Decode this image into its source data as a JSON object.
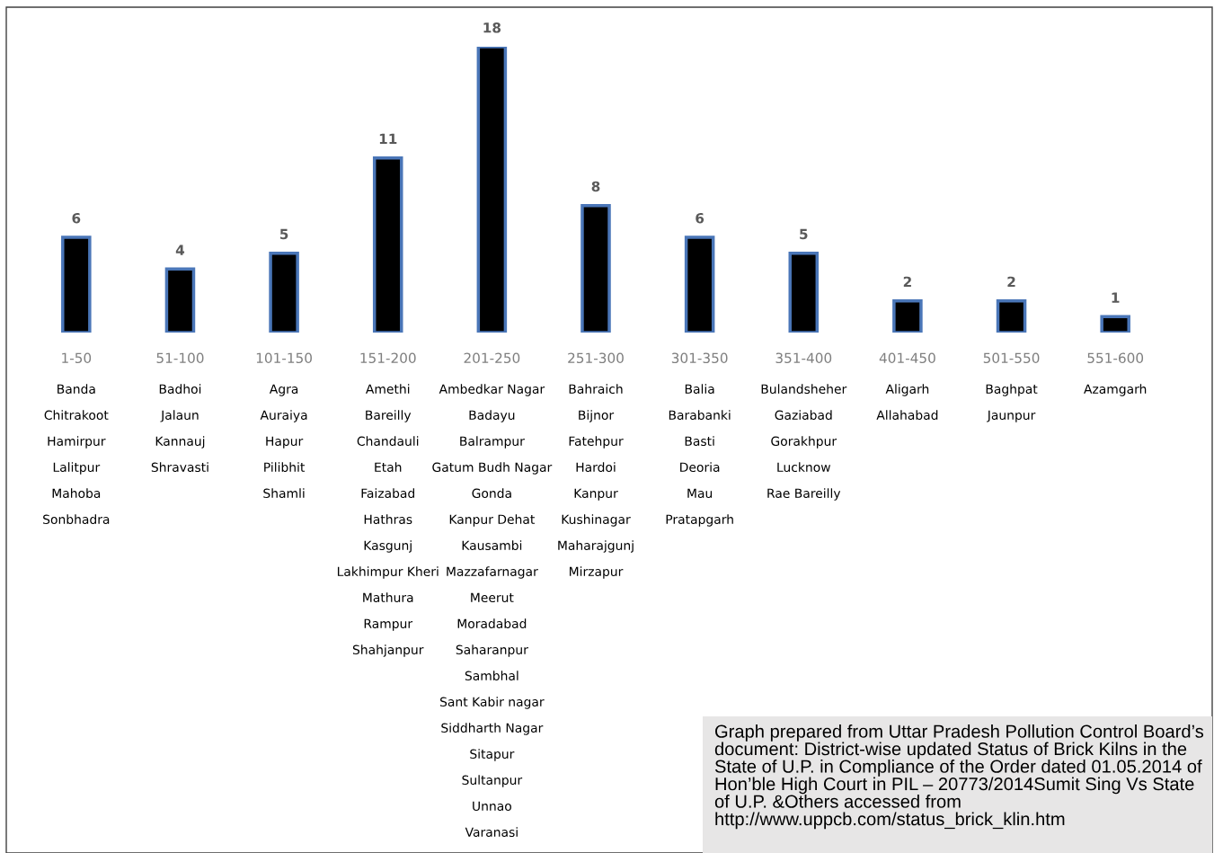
{
  "chart_data": {
    "type": "bar",
    "categories": [
      "1-50",
      "51-100",
      "101-150",
      "151-200",
      "201-250",
      "251-300",
      "301-350",
      "351-400",
      "401-450",
      "501-550",
      "551-600"
    ],
    "values": [
      6,
      4,
      5,
      11,
      18,
      8,
      6,
      5,
      2,
      2,
      1
    ],
    "color": "#000000",
    "data_labels": true,
    "grid": false,
    "legend": false,
    "annotations": [
      "Banda\nChitrakoot\nHamirpur\nLalitpur\nMahoba\nSonbhadra",
      "Badhoi\nJalaun\nKannauj\nShravasti",
      "Agra\nAuraiya\nHapur\nPilibhit\nShamli",
      "Amethi\nBareilly\nChandauli\nEtah\nFaizabad\nHathras\nKasgunj\nLakhimpur Kheri\nMathura\nRampur\nShahjanpur",
      "Ambedkar Nagar\nBadayu\nBalrampur\nGatum Budh Nagar\nGonda\nKanpur Dehat\nKausambi\nMazzafarnagar\nMeerut\nMoradabad\nSaharanpur\nSambhal\nSant Kabir nagar\nSiddharth Nagar\nSitapur\nSultanpur\nUnnao\nVaranasi",
      "Bahraich\nBijnor\nFatehpur\nHardoi\nKanpur\nKushinagar\nMaharajgunj\nMirzapur",
      "Balia\nBarabanki\nBasti\nDeoria\nMau\nPratapgarh",
      "Bulandsheher\nGaziabad\nGorakhpur\nLucknow\nRae Bareilly",
      "Aligarh\nAllahabad",
      "Baghpat\nJaunpur",
      "Azamgarh",
      "Graph prepared from Uttar Pradesh Pollution Control Board’s document: District-wise updated Status of Brick Kilns in the State of U.P. in Compliance of the Order dated 01.05.2014 of Hon’ble High Court in PIL – 20773/2014Sumit Sing Vs State of U.P. &Others accessed from http://www.uppcb.com/status_brick_klin.htm"
    ]
  }
}
